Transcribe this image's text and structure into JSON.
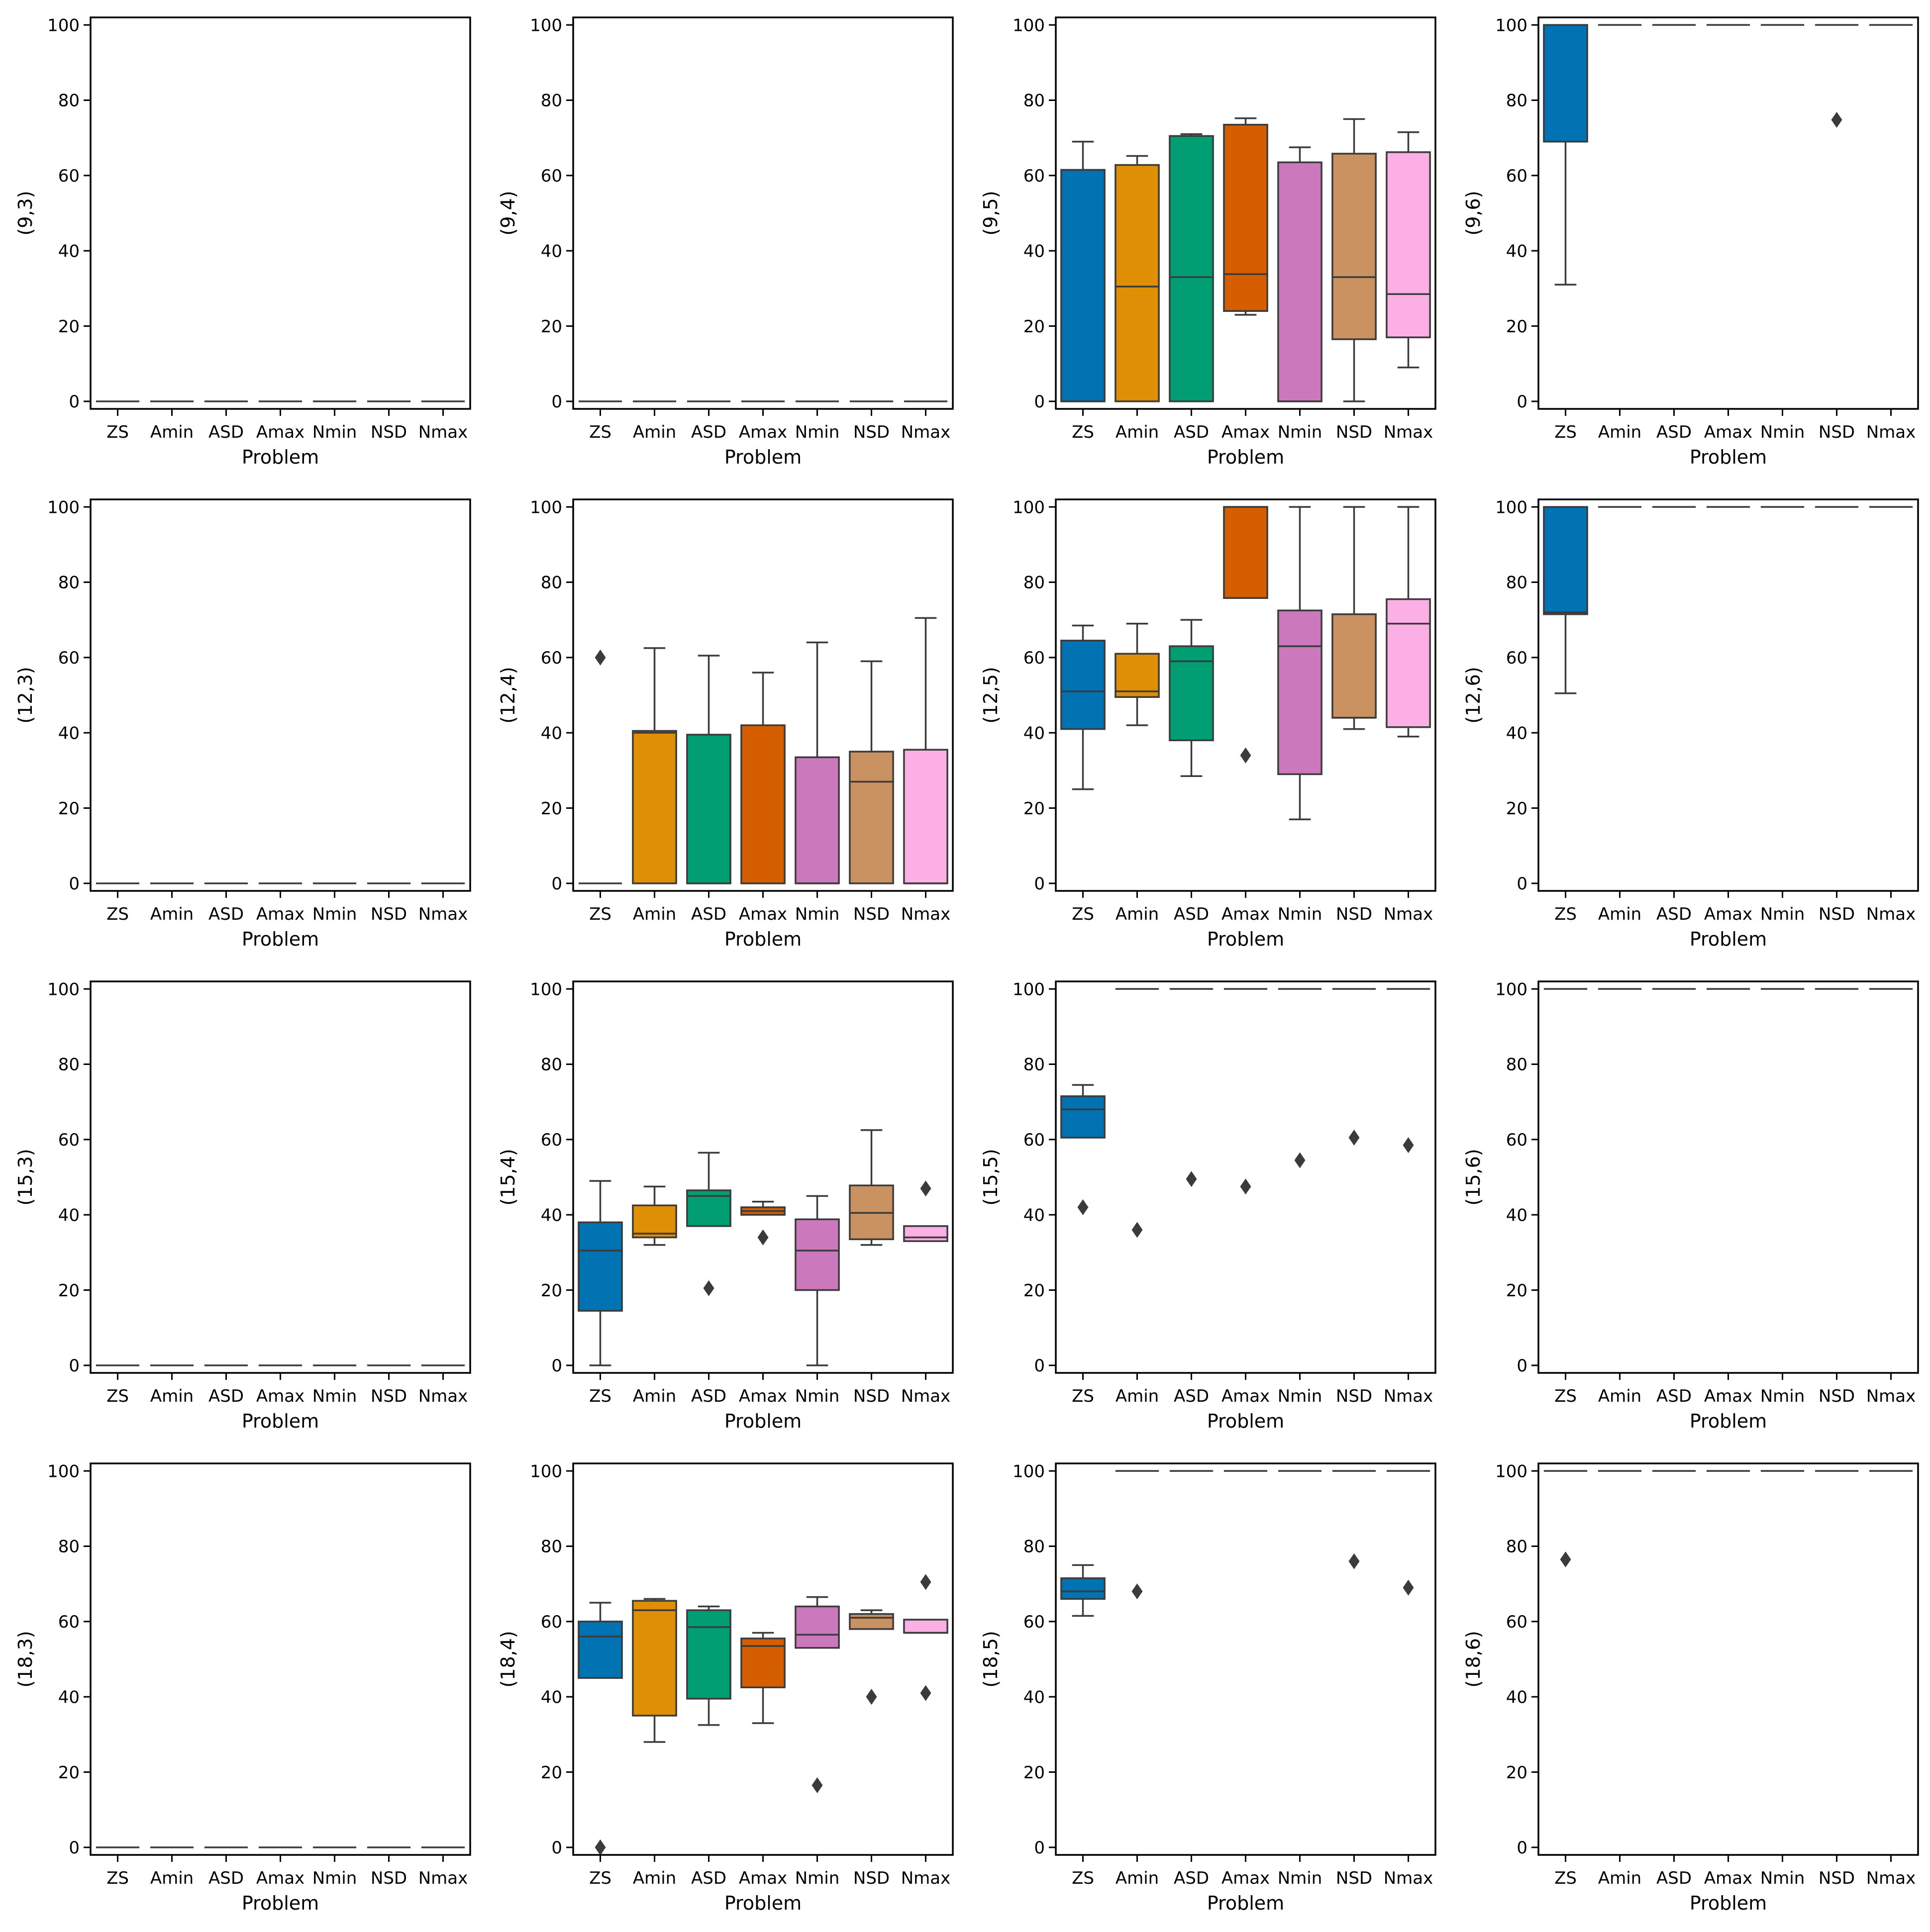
{
  "palette": [
    "#0173b2",
    "#de8f05",
    "#029e73",
    "#d55e00",
    "#cc78bc",
    "#ca9161",
    "#fbafe4"
  ],
  "chart_data": [
    {
      "type": "box",
      "ylabel": "(9,3)",
      "xlabel": "Problem",
      "categories": [
        "ZS",
        "Amin",
        "ASD",
        "Amax",
        "Nmin",
        "NSD",
        "Nmax"
      ],
      "ylim": [
        -2,
        102
      ],
      "yticks": [
        0,
        20,
        40,
        60,
        80,
        100
      ],
      "boxes": [
        [
          0,
          0,
          0,
          0,
          0
        ],
        [
          0,
          0,
          0,
          0,
          0
        ],
        [
          0,
          0,
          0,
          0,
          0
        ],
        [
          0,
          0,
          0,
          0,
          0
        ],
        [
          0,
          0,
          0,
          0,
          0
        ],
        [
          0,
          0,
          0,
          0,
          0
        ],
        [
          0,
          0,
          0,
          0,
          0
        ]
      ],
      "outliers": [
        [],
        [],
        [],
        [],
        [],
        [],
        []
      ]
    },
    {
      "type": "box",
      "ylabel": "(9,4)",
      "xlabel": "Problem",
      "categories": [
        "ZS",
        "Amin",
        "ASD",
        "Amax",
        "Nmin",
        "NSD",
        "Nmax"
      ],
      "ylim": [
        -2,
        102
      ],
      "yticks": [
        0,
        20,
        40,
        60,
        80,
        100
      ],
      "boxes": [
        [
          0,
          0,
          0,
          0,
          0
        ],
        [
          0,
          0,
          0,
          0,
          0
        ],
        [
          0,
          0,
          0,
          0,
          0
        ],
        [
          0,
          0,
          0,
          0,
          0
        ],
        [
          0,
          0,
          0,
          0,
          0
        ],
        [
          0,
          0,
          0,
          0,
          0
        ],
        [
          0,
          0,
          0,
          0,
          0
        ]
      ],
      "outliers": [
        [],
        [],
        [],
        [],
        [],
        [],
        []
      ]
    },
    {
      "type": "box",
      "ylabel": "(9,5)",
      "xlabel": "Problem",
      "categories": [
        "ZS",
        "Amin",
        "ASD",
        "Amax",
        "Nmin",
        "NSD",
        "Nmax"
      ],
      "ylim": [
        -2,
        102
      ],
      "yticks": [
        0,
        20,
        40,
        60,
        80,
        100
      ],
      "boxes": [
        [
          0,
          0,
          0,
          61.5,
          69
        ],
        [
          0,
          0,
          30.5,
          62.8,
          65.2
        ],
        [
          0,
          0,
          33,
          70.5,
          71
        ],
        [
          23,
          24,
          33.8,
          73.5,
          75.2
        ],
        [
          0,
          0,
          0,
          63.5,
          67.5
        ],
        [
          0,
          16.5,
          33,
          65.8,
          75
        ],
        [
          9,
          17,
          28.5,
          66.2,
          71.5
        ]
      ],
      "outliers": [
        [],
        [],
        [],
        [],
        [],
        [],
        []
      ]
    },
    {
      "type": "box",
      "ylabel": "(9,6)",
      "xlabel": "Problem",
      "categories": [
        "ZS",
        "Amin",
        "ASD",
        "Amax",
        "Nmin",
        "NSD",
        "Nmax"
      ],
      "ylim": [
        -2,
        102
      ],
      "yticks": [
        0,
        20,
        40,
        60,
        80,
        100
      ],
      "boxes": [
        [
          31,
          69,
          69,
          100,
          100
        ],
        [
          100,
          100,
          100,
          100,
          100
        ],
        [
          100,
          100,
          100,
          100,
          100
        ],
        [
          100,
          100,
          100,
          100,
          100
        ],
        [
          100,
          100,
          100,
          100,
          100
        ],
        [
          100,
          100,
          100,
          100,
          100
        ],
        [
          100,
          100,
          100,
          100,
          100
        ]
      ],
      "outliers": [
        [],
        [],
        [],
        [],
        [],
        [
          74.8
        ],
        []
      ]
    },
    {
      "type": "box",
      "ylabel": "(12,3)",
      "xlabel": "Problem",
      "categories": [
        "ZS",
        "Amin",
        "ASD",
        "Amax",
        "Nmin",
        "NSD",
        "Nmax"
      ],
      "ylim": [
        -2,
        102
      ],
      "yticks": [
        0,
        20,
        40,
        60,
        80,
        100
      ],
      "boxes": [
        [
          0,
          0,
          0,
          0,
          0
        ],
        [
          0,
          0,
          0,
          0,
          0
        ],
        [
          0,
          0,
          0,
          0,
          0
        ],
        [
          0,
          0,
          0,
          0,
          0
        ],
        [
          0,
          0,
          0,
          0,
          0
        ],
        [
          0,
          0,
          0,
          0,
          0
        ],
        [
          0,
          0,
          0,
          0,
          0
        ]
      ],
      "outliers": [
        [],
        [],
        [],
        [],
        [],
        [],
        []
      ]
    },
    {
      "type": "box",
      "ylabel": "(12,4)",
      "xlabel": "Problem",
      "categories": [
        "ZS",
        "Amin",
        "ASD",
        "Amax",
        "Nmin",
        "NSD",
        "Nmax"
      ],
      "ylim": [
        -2,
        102
      ],
      "yticks": [
        0,
        20,
        40,
        60,
        80,
        100
      ],
      "boxes": [
        [
          0,
          0,
          0,
          0,
          0
        ],
        [
          0,
          0,
          40,
          40.5,
          62.5
        ],
        [
          0,
          0,
          0,
          39.5,
          60.5
        ],
        [
          0,
          0,
          0,
          42,
          56
        ],
        [
          0,
          0,
          0,
          33.5,
          64
        ],
        [
          0,
          0,
          27,
          35,
          59
        ],
        [
          0,
          0,
          0,
          35.5,
          70.5
        ]
      ],
      "outliers": [
        [
          60
        ],
        [],
        [],
        [],
        [],
        [],
        []
      ]
    },
    {
      "type": "box",
      "ylabel": "(12,5)",
      "xlabel": "Problem",
      "categories": [
        "ZS",
        "Amin",
        "ASD",
        "Amax",
        "Nmin",
        "NSD",
        "Nmax"
      ],
      "ylim": [
        -2,
        102
      ],
      "yticks": [
        0,
        20,
        40,
        60,
        80,
        100
      ],
      "boxes": [
        [
          25,
          41,
          51,
          64.5,
          68.5
        ],
        [
          42,
          49.5,
          51,
          61,
          69
        ],
        [
          28.5,
          38,
          59,
          63,
          70
        ],
        [
          75.8,
          75.8,
          100,
          100,
          100
        ],
        [
          17,
          29,
          63,
          72.5,
          100
        ],
        [
          41,
          44,
          44,
          71.5,
          100
        ],
        [
          39,
          41.5,
          69,
          75.5,
          100
        ]
      ],
      "outliers": [
        [],
        [],
        [],
        [
          34
        ],
        [],
        [],
        []
      ]
    },
    {
      "type": "box",
      "ylabel": "(12,6)",
      "xlabel": "Problem",
      "categories": [
        "ZS",
        "Amin",
        "ASD",
        "Amax",
        "Nmin",
        "NSD",
        "Nmax"
      ],
      "ylim": [
        -2,
        102
      ],
      "yticks": [
        0,
        20,
        40,
        60,
        80,
        100
      ],
      "boxes": [
        [
          50.5,
          71.5,
          72,
          100,
          100
        ],
        [
          100,
          100,
          100,
          100,
          100
        ],
        [
          100,
          100,
          100,
          100,
          100
        ],
        [
          100,
          100,
          100,
          100,
          100
        ],
        [
          100,
          100,
          100,
          100,
          100
        ],
        [
          100,
          100,
          100,
          100,
          100
        ],
        [
          100,
          100,
          100,
          100,
          100
        ]
      ],
      "outliers": [
        [],
        [],
        [],
        [],
        [],
        [],
        []
      ]
    },
    {
      "type": "box",
      "ylabel": "(15,3)",
      "xlabel": "Problem",
      "categories": [
        "ZS",
        "Amin",
        "ASD",
        "Amax",
        "Nmin",
        "NSD",
        "Nmax"
      ],
      "ylim": [
        -2,
        102
      ],
      "yticks": [
        0,
        20,
        40,
        60,
        80,
        100
      ],
      "boxes": [
        [
          0,
          0,
          0,
          0,
          0
        ],
        [
          0,
          0,
          0,
          0,
          0
        ],
        [
          0,
          0,
          0,
          0,
          0
        ],
        [
          0,
          0,
          0,
          0,
          0
        ],
        [
          0,
          0,
          0,
          0,
          0
        ],
        [
          0,
          0,
          0,
          0,
          0
        ],
        [
          0,
          0,
          0,
          0,
          0
        ]
      ],
      "outliers": [
        [],
        [],
        [],
        [],
        [],
        [],
        []
      ]
    },
    {
      "type": "box",
      "ylabel": "(15,4)",
      "xlabel": "Problem",
      "categories": [
        "ZS",
        "Amin",
        "ASD",
        "Amax",
        "Nmin",
        "NSD",
        "Nmax"
      ],
      "ylim": [
        -2,
        102
      ],
      "yticks": [
        0,
        20,
        40,
        60,
        80,
        100
      ],
      "boxes": [
        [
          0,
          14.5,
          30.5,
          38,
          49
        ],
        [
          32,
          34,
          35,
          42.5,
          47.5
        ],
        [
          37,
          37,
          45,
          46.5,
          56.5
        ],
        [
          40,
          40,
          41,
          42,
          43.5
        ],
        [
          0,
          20,
          30.5,
          38.8,
          45
        ],
        [
          32,
          33.5,
          40.5,
          47.8,
          62.5
        ],
        [
          33,
          33,
          34,
          37,
          37
        ]
      ],
      "outliers": [
        [],
        [],
        [
          20.5
        ],
        [
          34
        ],
        [],
        [],
        [
          47
        ]
      ]
    },
    {
      "type": "box",
      "ylabel": "(15,5)",
      "xlabel": "Problem",
      "categories": [
        "ZS",
        "Amin",
        "ASD",
        "Amax",
        "Nmin",
        "NSD",
        "Nmax"
      ],
      "ylim": [
        -2,
        102
      ],
      "yticks": [
        0,
        20,
        40,
        60,
        80,
        100
      ],
      "boxes": [
        [
          60.5,
          60.5,
          68,
          71.5,
          74.5
        ],
        [
          100,
          100,
          100,
          100,
          100
        ],
        [
          100,
          100,
          100,
          100,
          100
        ],
        [
          100,
          100,
          100,
          100,
          100
        ],
        [
          100,
          100,
          100,
          100,
          100
        ],
        [
          100,
          100,
          100,
          100,
          100
        ],
        [
          100,
          100,
          100,
          100,
          100
        ]
      ],
      "outliers": [
        [
          42
        ],
        [
          36
        ],
        [
          49.5
        ],
        [
          47.5
        ],
        [
          54.5
        ],
        [
          60.5
        ],
        [
          58.5
        ]
      ]
    },
    {
      "type": "box",
      "ylabel": "(15,6)",
      "xlabel": "Problem",
      "categories": [
        "ZS",
        "Amin",
        "ASD",
        "Amax",
        "Nmin",
        "NSD",
        "Nmax"
      ],
      "ylim": [
        -2,
        102
      ],
      "yticks": [
        0,
        20,
        40,
        60,
        80,
        100
      ],
      "boxes": [
        [
          100,
          100,
          100,
          100,
          100
        ],
        [
          100,
          100,
          100,
          100,
          100
        ],
        [
          100,
          100,
          100,
          100,
          100
        ],
        [
          100,
          100,
          100,
          100,
          100
        ],
        [
          100,
          100,
          100,
          100,
          100
        ],
        [
          100,
          100,
          100,
          100,
          100
        ],
        [
          100,
          100,
          100,
          100,
          100
        ]
      ],
      "outliers": [
        [],
        [],
        [],
        [],
        [],
        [],
        []
      ]
    },
    {
      "type": "box",
      "ylabel": "(18,3)",
      "xlabel": "Problem",
      "categories": [
        "ZS",
        "Amin",
        "ASD",
        "Amax",
        "Nmin",
        "NSD",
        "Nmax"
      ],
      "ylim": [
        -2,
        102
      ],
      "yticks": [
        0,
        20,
        40,
        60,
        80,
        100
      ],
      "boxes": [
        [
          0,
          0,
          0,
          0,
          0
        ],
        [
          0,
          0,
          0,
          0,
          0
        ],
        [
          0,
          0,
          0,
          0,
          0
        ],
        [
          0,
          0,
          0,
          0,
          0
        ],
        [
          0,
          0,
          0,
          0,
          0
        ],
        [
          0,
          0,
          0,
          0,
          0
        ],
        [
          0,
          0,
          0,
          0,
          0
        ]
      ],
      "outliers": [
        [],
        [],
        [],
        [],
        [],
        [],
        []
      ]
    },
    {
      "type": "box",
      "ylabel": "(18,4)",
      "xlabel": "Problem",
      "categories": [
        "ZS",
        "Amin",
        "ASD",
        "Amax",
        "Nmin",
        "NSD",
        "Nmax"
      ],
      "ylim": [
        -2,
        102
      ],
      "yticks": [
        0,
        20,
        40,
        60,
        80,
        100
      ],
      "boxes": [
        [
          45,
          45,
          56,
          60,
          65
        ],
        [
          28,
          35,
          63,
          65.5,
          66
        ],
        [
          32.5,
          39.5,
          58.5,
          63,
          64
        ],
        [
          33,
          42.5,
          53.5,
          55.5,
          57
        ],
        [
          53,
          53,
          56.5,
          64,
          66.5
        ],
        [
          58,
          58,
          61,
          62,
          63
        ],
        [
          57,
          57,
          57,
          60.5,
          60.5
        ]
      ],
      "outliers": [
        [
          0
        ],
        [],
        [],
        [],
        [
          16.5
        ],
        [
          40
        ],
        [
          41,
          70.5
        ]
      ]
    },
    {
      "type": "box",
      "ylabel": "(18,5)",
      "xlabel": "Problem",
      "categories": [
        "ZS",
        "Amin",
        "ASD",
        "Amax",
        "Nmin",
        "NSD",
        "Nmax"
      ],
      "ylim": [
        -2,
        102
      ],
      "yticks": [
        0,
        20,
        40,
        60,
        80,
        100
      ],
      "boxes": [
        [
          61.5,
          66,
          68,
          71.5,
          75
        ],
        [
          100,
          100,
          100,
          100,
          100
        ],
        [
          100,
          100,
          100,
          100,
          100
        ],
        [
          100,
          100,
          100,
          100,
          100
        ],
        [
          100,
          100,
          100,
          100,
          100
        ],
        [
          100,
          100,
          100,
          100,
          100
        ],
        [
          100,
          100,
          100,
          100,
          100
        ]
      ],
      "outliers": [
        [],
        [
          68
        ],
        [],
        [],
        [],
        [
          76
        ],
        [
          69
        ]
      ]
    },
    {
      "type": "box",
      "ylabel": "(18,6)",
      "xlabel": "Problem",
      "categories": [
        "ZS",
        "Amin",
        "ASD",
        "Amax",
        "Nmin",
        "NSD",
        "Nmax"
      ],
      "ylim": [
        -2,
        102
      ],
      "yticks": [
        0,
        20,
        40,
        60,
        80,
        100
      ],
      "boxes": [
        [
          100,
          100,
          100,
          100,
          100
        ],
        [
          100,
          100,
          100,
          100,
          100
        ],
        [
          100,
          100,
          100,
          100,
          100
        ],
        [
          100,
          100,
          100,
          100,
          100
        ],
        [
          100,
          100,
          100,
          100,
          100
        ],
        [
          100,
          100,
          100,
          100,
          100
        ],
        [
          100,
          100,
          100,
          100,
          100
        ]
      ],
      "outliers": [
        [
          76.5
        ],
        [],
        [],
        [],
        [],
        [],
        []
      ]
    }
  ]
}
